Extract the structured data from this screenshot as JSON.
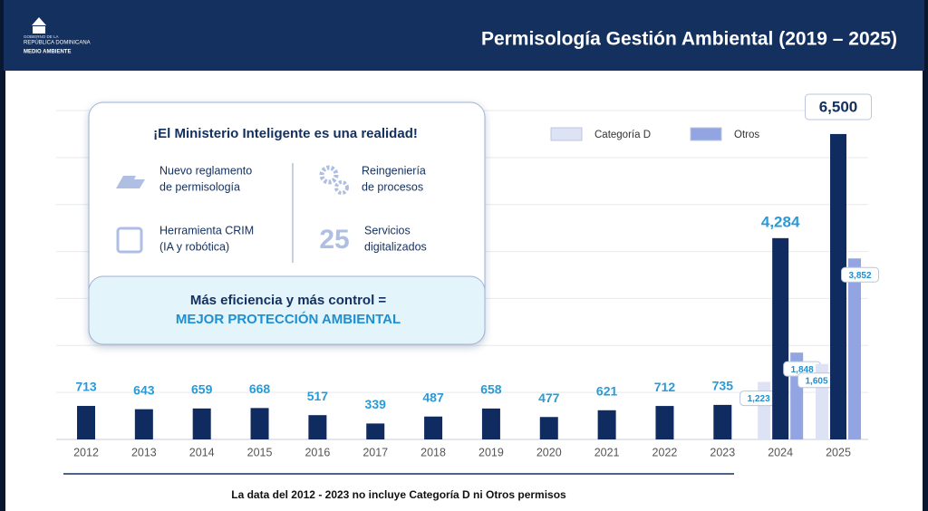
{
  "header": {
    "logo": [
      "GOBIERNO DE LA",
      "REPÚBLICA DOMINICANA",
      "MEDIO AMBIENTE"
    ]
  },
  "info": {
    "title": "¡El Ministerio Inteligente es una realidad!",
    "items": [
      {
        "lines": [
          "Nuevo reglamento",
          "de permisología"
        ]
      },
      {
        "lines": [
          "Reingeniería",
          "de procesos"
        ]
      },
      {
        "lines": [
          "Herramienta CRIM",
          "(IA y robótica)"
        ]
      },
      {
        "number": 25,
        "lines": [
          "Servicios",
          "digitalizados"
        ]
      }
    ],
    "banner": [
      "Más eficiencia y más control =",
      "MEJOR PROTECCIÓN AMBIENTAL"
    ]
  },
  "chart_data": {
    "type": "bar",
    "title": "Permisología Gestión Ambiental (2019 – 2025)",
    "note": "La data del 2012 - 2023 no incluye Categoría D ni Otros permisos",
    "categories": [
      "2012",
      "2013",
      "2014",
      "2015",
      "2016",
      "2017",
      "2018",
      "2019",
      "2020",
      "2021",
      "2022",
      "2023",
      "2024",
      "2025"
    ],
    "series": [
      {
        "color": "#0f2b60",
        "values": [
          713,
          643,
          659,
          668,
          517,
          339,
          487,
          658,
          477,
          621,
          712,
          735,
          4284,
          6500
        ],
        "value_labels": [
          "713",
          "643",
          "659",
          "668",
          "517",
          "339",
          "487",
          "658",
          "477",
          "621",
          "712",
          "735",
          "4,284",
          "6,500"
        ]
      },
      {
        "name": "Categoría D",
        "color": "#dde2f4",
        "values": [
          null,
          null,
          null,
          null,
          null,
          null,
          null,
          null,
          null,
          null,
          null,
          null,
          1223,
          1605
        ],
        "value_labels": [
          null,
          null,
          null,
          null,
          null,
          null,
          null,
          null,
          null,
          null,
          null,
          null,
          "1,223",
          "1,605"
        ]
      },
      {
        "name": "Otros",
        "color": "#92a5e2",
        "values": [
          null,
          null,
          null,
          null,
          null,
          null,
          null,
          null,
          null,
          null,
          null,
          null,
          1848,
          3852
        ],
        "value_labels": [
          null,
          null,
          null,
          null,
          null,
          null,
          null,
          null,
          null,
          null,
          null,
          null,
          "1,848",
          "3,852"
        ]
      }
    ],
    "ylim": [
      0,
      7000
    ],
    "yticks": [
      0,
      1000,
      2000,
      3000,
      4000,
      5000,
      6000,
      7000
    ],
    "grid": true
  }
}
